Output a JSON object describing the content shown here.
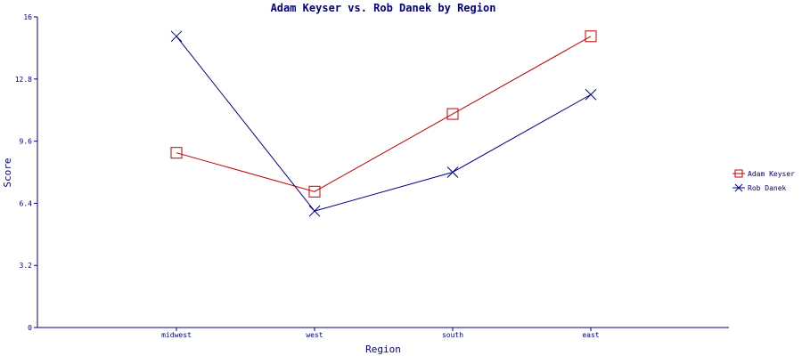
{
  "chart_data": {
    "type": "line",
    "title": "Adam Keyser vs. Rob Danek by Region",
    "xlabel": "Region",
    "ylabel": "Score",
    "categories": [
      "midwest",
      "west",
      "south",
      "east"
    ],
    "ylim": [
      0,
      16
    ],
    "yticks": [
      "0",
      "3.2",
      "6.4",
      "9.6",
      "12.8",
      "16"
    ],
    "grid": false,
    "legend_position": "right",
    "series": [
      {
        "name": "Adam Keyser",
        "values": [
          9.0,
          7.0,
          11.0,
          15.0
        ],
        "color": "#c00000",
        "marker": "square"
      },
      {
        "name": "Rob Danek",
        "values": [
          15.0,
          6.0,
          8.0,
          12.0
        ],
        "color": "#00008b",
        "marker": "x"
      }
    ],
    "text_color": "#000080"
  }
}
